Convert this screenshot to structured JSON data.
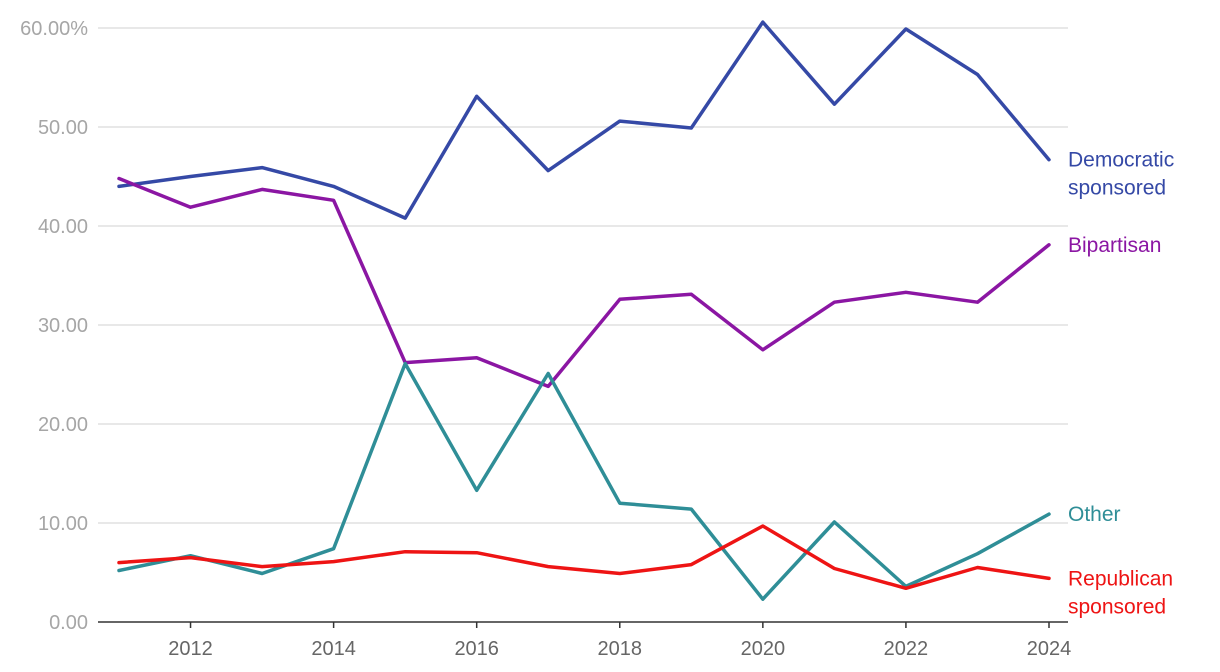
{
  "chart_data": {
    "type": "line",
    "title": "",
    "xlabel": "",
    "ylabel": "",
    "x": [
      2011,
      2012,
      2013,
      2014,
      2015,
      2016,
      2017,
      2018,
      2019,
      2020,
      2021,
      2022,
      2023,
      2024
    ],
    "ylim": [
      0,
      60
    ],
    "xlim": [
      2011,
      2024
    ],
    "y_ticks": [
      {
        "value": 0,
        "label": "0.00"
      },
      {
        "value": 10,
        "label": "10.00"
      },
      {
        "value": 20,
        "label": "20.00"
      },
      {
        "value": 30,
        "label": "30.00"
      },
      {
        "value": 40,
        "label": "40.00"
      },
      {
        "value": 50,
        "label": "50.00"
      },
      {
        "value": 60,
        "label": "60.00%"
      }
    ],
    "x_ticks": [
      {
        "value": 2012,
        "label": "2012"
      },
      {
        "value": 2014,
        "label": "2014"
      },
      {
        "value": 2016,
        "label": "2016"
      },
      {
        "value": 2018,
        "label": "2018"
      },
      {
        "value": 2020,
        "label": "2020"
      },
      {
        "value": 2022,
        "label": "2022"
      },
      {
        "value": 2024,
        "label": "2024"
      }
    ],
    "grid": true,
    "legend": "direct labels at right end of lines",
    "series": [
      {
        "name": "Democratic sponsored",
        "label_lines": [
          "Democratic",
          "sponsored"
        ],
        "color": "#3549a6",
        "values": [
          44.0,
          45.0,
          45.9,
          44.0,
          40.8,
          53.1,
          45.6,
          50.6,
          49.9,
          60.6,
          52.3,
          59.9,
          55.3,
          46.7
        ]
      },
      {
        "name": "Bipartisan",
        "label_lines": [
          "Bipartisan"
        ],
        "color": "#8b16a3",
        "values": [
          44.8,
          41.9,
          43.7,
          42.6,
          26.2,
          26.7,
          23.8,
          32.6,
          33.1,
          27.5,
          32.3,
          33.3,
          32.3,
          38.1
        ]
      },
      {
        "name": "Other",
        "label_lines": [
          "Other"
        ],
        "color": "#2f8e97",
        "values": [
          5.2,
          6.7,
          4.9,
          7.4,
          26.1,
          13.3,
          25.1,
          12.0,
          11.4,
          2.3,
          10.1,
          3.6,
          6.9,
          10.9
        ]
      },
      {
        "name": "Republican sponsored",
        "label_lines": [
          "Republican",
          "sponsored"
        ],
        "color": "#ee1414",
        "values": [
          6.0,
          6.5,
          5.6,
          6.1,
          7.1,
          7.0,
          5.6,
          4.9,
          5.8,
          9.7,
          5.4,
          3.4,
          5.5,
          4.4
        ]
      }
    ]
  }
}
